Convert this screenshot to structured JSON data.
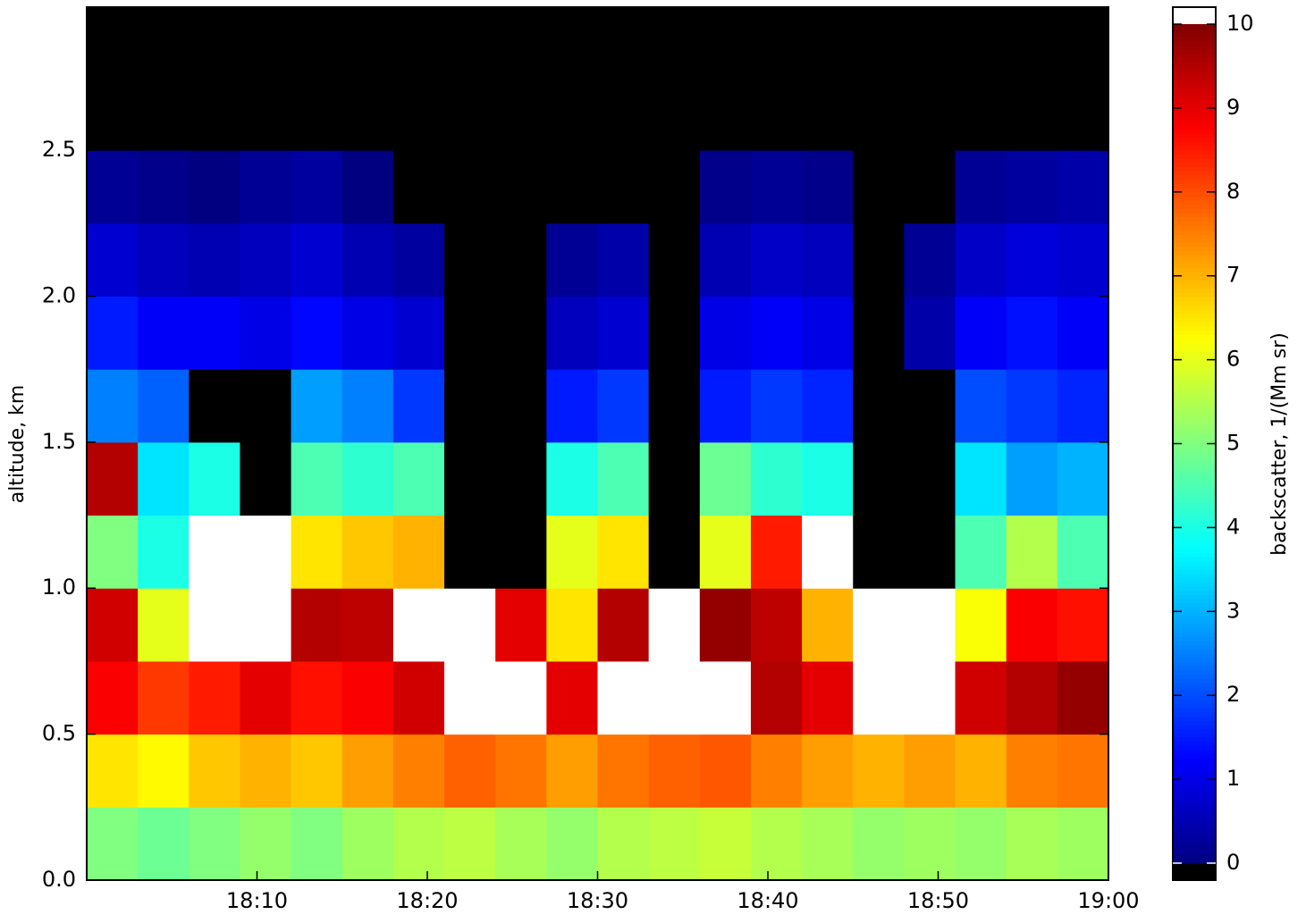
{
  "chart_data": {
    "type": "heatmap",
    "x_bins": [
      1080,
      1083,
      1086,
      1089,
      1092,
      1095,
      1098,
      1101,
      1104,
      1107,
      1110,
      1113,
      1116,
      1119,
      1122,
      1125,
      1128,
      1131,
      1134,
      1137,
      1140
    ],
    "y_bins": [
      0,
      0.25,
      0.5,
      0.75,
      1.0,
      1.25,
      1.5,
      1.75,
      2.0,
      2.25,
      2.5,
      2.75,
      2.99
    ],
    "z": [
      [
        5,
        4.8,
        5,
        5.2,
        5,
        5.3,
        5.5,
        5.6,
        5.4,
        5.2,
        5.5,
        5.6,
        5.7,
        5.5,
        5.4,
        5.2,
        5.3,
        5.2,
        5.4,
        5.3
      ],
      [
        6.5,
        6.3,
        6.8,
        7,
        6.8,
        7.2,
        7.5,
        7.8,
        7.6,
        7.2,
        7.6,
        7.8,
        7.9,
        7.5,
        7.2,
        7,
        7.2,
        7,
        7.5,
        7.6
      ],
      [
        8.8,
        8.2,
        8.5,
        9,
        8.6,
        8.8,
        9.2,
        10.5,
        10.8,
        9,
        10.5,
        10.6,
        10.8,
        9.5,
        9,
        10.5,
        10.6,
        9.2,
        9.5,
        9.8
      ],
      [
        9.2,
        6,
        10.4,
        10.6,
        9.5,
        9.4,
        10.5,
        10.3,
        9,
        6.5,
        9.5,
        10.3,
        9.8,
        9.4,
        7,
        10.4,
        10.2,
        6.2,
        8.8,
        8.6
      ],
      [
        5,
        4,
        10.5,
        10.2,
        6.5,
        6.8,
        7,
        -0.5,
        -0.5,
        6,
        6.5,
        -0.5,
        6,
        8.5,
        10.6,
        -0.5,
        -0.5,
        4.5,
        5.5,
        4.5
      ],
      [
        9.5,
        3.5,
        4,
        -0.5,
        4.5,
        4.2,
        4.5,
        -0.5,
        -0.5,
        4,
        4.5,
        -0.5,
        4.8,
        4.2,
        4,
        -0.5,
        -0.5,
        3.5,
        2.8,
        3
      ],
      [
        2.5,
        2.2,
        -0.5,
        -0.5,
        2.8,
        2.5,
        1.8,
        -0.5,
        -0.5,
        1.5,
        1.8,
        -0.5,
        1.5,
        1.8,
        1.6,
        -0.5,
        -0.5,
        2,
        1.8,
        1.6
      ],
      [
        1.5,
        1.2,
        1.2,
        1,
        1.3,
        1,
        0.8,
        -0.5,
        -0.5,
        0.6,
        0.8,
        -0.5,
        1,
        1.2,
        1,
        -0.5,
        0.4,
        1.2,
        1.4,
        1.2
      ],
      [
        0.8,
        0.6,
        0.5,
        0.6,
        0.8,
        0.5,
        0.3,
        -0.5,
        -0.5,
        0.2,
        0.4,
        -0.5,
        0.5,
        0.7,
        0.6,
        -0.5,
        0.2,
        0.7,
        0.9,
        0.8
      ],
      [
        0.2,
        0.1,
        0,
        0.2,
        0.3,
        0,
        -0.3,
        -0.5,
        -0.5,
        -0.3,
        -0.2,
        -0.5,
        0.1,
        0.2,
        0.1,
        -0.5,
        -0.3,
        0.2,
        0.3,
        0.4
      ],
      [
        -0.5,
        -0.5,
        -0.5,
        -0.5,
        -0.5,
        -0.5,
        -0.5,
        -0.5,
        -0.5,
        -0.5,
        -0.5,
        -0.5,
        -0.5,
        -0.5,
        -0.5,
        -0.5,
        -0.5,
        -0.5,
        -0.5,
        -0.5
      ],
      [
        -0.5,
        -0.5,
        -0.5,
        -0.5,
        -0.5,
        -0.5,
        -0.5,
        -0.5,
        -0.5,
        -0.5,
        -0.5,
        -0.5,
        -0.5,
        -0.5,
        -0.5,
        -0.5,
        -0.5,
        -0.5,
        -0.5,
        -0.5
      ]
    ],
    "xlim": [
      1080,
      1140
    ],
    "xticks": [
      {
        "value": 1090,
        "label": "18:10"
      },
      {
        "value": 1100,
        "label": "18:20"
      },
      {
        "value": 1110,
        "label": "18:30"
      },
      {
        "value": 1120,
        "label": "18:40"
      },
      {
        "value": 1130,
        "label": "18:50"
      },
      {
        "value": 1140,
        "label": "19:00"
      }
    ],
    "ylim": [
      0,
      2.99
    ],
    "yticks": [
      {
        "value": 0,
        "label": "0.0"
      },
      0.5,
      {
        "value": 1,
        "label": "1.0"
      },
      1.5,
      {
        "value": 2,
        "label": "2.0"
      },
      2.5
    ],
    "ylabel": "altitude, km",
    "colormap": "jet",
    "under_color": "#000000",
    "over_color": "#ffffff",
    "colorbar": {
      "label": "backscatter, 1/(Mm sr)",
      "lim": [
        0,
        10
      ],
      "ticks": [
        0,
        1,
        2,
        3,
        4,
        5,
        6,
        7,
        8,
        9,
        10
      ]
    }
  }
}
